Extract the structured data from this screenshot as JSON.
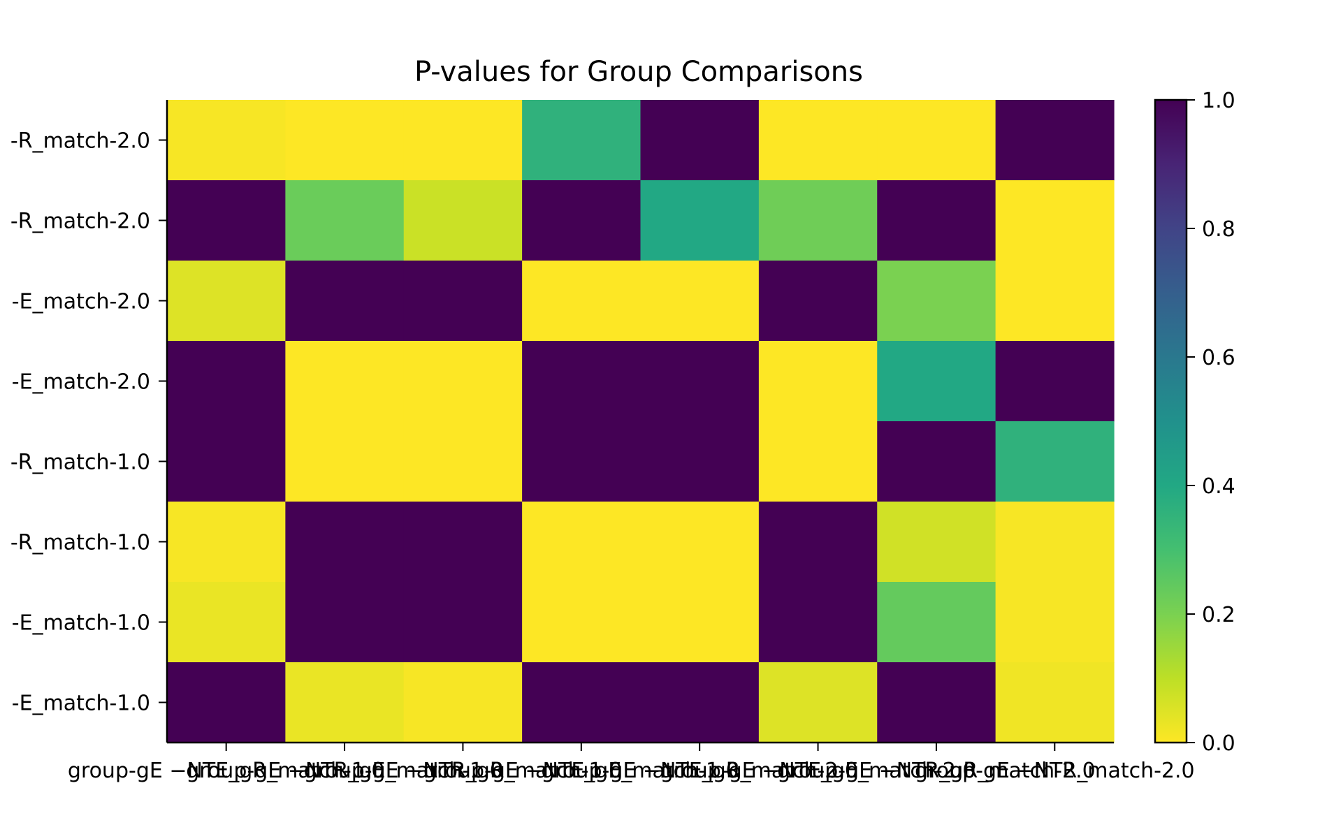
{
  "chart_data": {
    "type": "heatmap",
    "title": "P-values for Group Comparisons",
    "x_tick_labels": [
      "group-gE −NTE_gR_match-1.0",
      "group-gE −NTR_gE_match-1.0",
      "group-gE −NTR_gR_match-1.0",
      "group-gE −NTE_gE_match-1.0",
      "group-gE −NTE_gR_match-2.0",
      "group-gE −NTE_gE_match-2.0",
      "group-gE −NTR_gR_match-2.0",
      "group-gE −NTR_match-2.0"
    ],
    "y_tick_labels": [
      "‑R_match-2.0",
      "‑R_match-2.0",
      "‑E_match-2.0",
      "‑E_match-2.0",
      "‑R_match-1.0",
      "‑R_match-1.0",
      "‑E_match-1.0",
      "‑E_match-1.0"
    ],
    "values": [
      [
        0.01,
        0.0,
        0.0,
        0.36,
        1.0,
        0.0,
        0.0,
        1.0
      ],
      [
        1.0,
        0.23,
        0.08,
        1.0,
        0.4,
        0.22,
        1.0,
        0.0
      ],
      [
        0.05,
        1.0,
        1.0,
        0.0,
        0.0,
        1.0,
        0.2,
        0.0
      ],
      [
        1.0,
        0.0,
        0.0,
        1.0,
        1.0,
        0.0,
        0.4,
        1.0
      ],
      [
        1.0,
        0.0,
        0.0,
        1.0,
        1.0,
        0.0,
        1.0,
        0.36
      ],
      [
        0.01,
        1.0,
        1.0,
        0.0,
        0.0,
        1.0,
        0.07,
        0.01
      ],
      [
        0.03,
        1.0,
        1.0,
        0.0,
        0.0,
        1.0,
        0.24,
        0.01
      ],
      [
        1.0,
        0.03,
        0.01,
        1.0,
        1.0,
        0.05,
        1.0,
        0.02
      ]
    ],
    "colorbar": {
      "range": [
        0.0,
        1.0
      ],
      "ticks": [
        0.0,
        0.2,
        0.4,
        0.6,
        0.8,
        1.0
      ],
      "tick_labels": [
        "0.0",
        "0.2",
        "0.4",
        "0.6",
        "0.8",
        "1.0"
      ],
      "colormap": "viridis_r"
    }
  }
}
